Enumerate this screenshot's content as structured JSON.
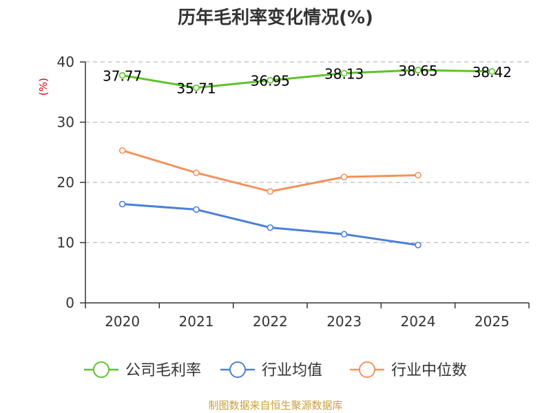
{
  "chart_data": {
    "type": "line",
    "title": "历年毛利率变化情况(%)",
    "ylabel": "(%)",
    "categories": [
      "2020",
      "2021",
      "2022",
      "2023",
      "2024",
      "2025"
    ],
    "ylim": [
      0,
      40
    ],
    "yticks": [
      0,
      10,
      20,
      30,
      40
    ],
    "grid": true,
    "legend_position": "bottom",
    "series": [
      {
        "name": "公司毛利率",
        "color": "#5dc22a",
        "values": [
          37.77,
          35.71,
          36.95,
          38.13,
          38.65,
          38.42
        ],
        "show_labels": true
      },
      {
        "name": "行业均值",
        "color": "#4a7fd8",
        "values": [
          16.4,
          15.5,
          12.5,
          11.4,
          9.6,
          null
        ],
        "show_labels": false
      },
      {
        "name": "行业中位数",
        "color": "#f5915a",
        "values": [
          25.3,
          21.6,
          18.5,
          20.9,
          21.2,
          null
        ],
        "show_labels": false
      }
    ],
    "data_labels": [
      "37.77",
      "35.71",
      "36.95",
      "38.13",
      "38.65",
      "38.42"
    ]
  },
  "source": "制图数据来自恒生聚源数据库",
  "colors": {
    "title": "#333333",
    "axis": "#333333",
    "grid": "#bbbbbb",
    "unit": "#cc0000",
    "source": "#c8a040"
  }
}
